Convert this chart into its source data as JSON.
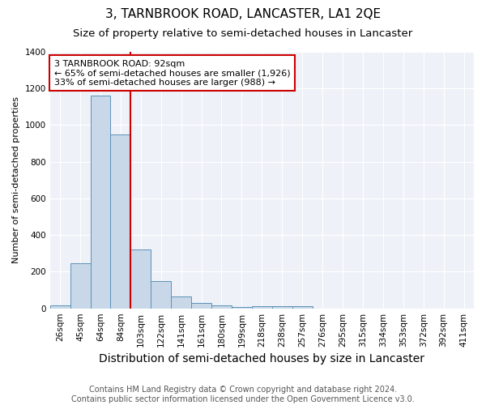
{
  "title": "3, TARNBROOK ROAD, LANCASTER, LA1 2QE",
  "subtitle": "Size of property relative to semi-detached houses in Lancaster",
  "xlabel": "Distribution of semi-detached houses by size in Lancaster",
  "ylabel": "Number of semi-detached properties",
  "categories": [
    "26sqm",
    "45sqm",
    "64sqm",
    "84sqm",
    "103sqm",
    "122sqm",
    "141sqm",
    "161sqm",
    "180sqm",
    "199sqm",
    "218sqm",
    "238sqm",
    "257sqm",
    "276sqm",
    "295sqm",
    "315sqm",
    "334sqm",
    "353sqm",
    "372sqm",
    "392sqm",
    "411sqm"
  ],
  "values": [
    15,
    248,
    1160,
    950,
    320,
    148,
    65,
    28,
    15,
    8,
    12,
    12,
    10,
    0,
    0,
    0,
    0,
    0,
    0,
    0,
    0
  ],
  "bar_color": "#c8d8e8",
  "bar_edge_color": "#5b92b8",
  "marker_line_color": "#cc0000",
  "annotation_line0": "3 TARNBROOK ROAD: 92sqm",
  "annotation_line1": "← 65% of semi-detached houses are smaller (1,926)",
  "annotation_line2": "33% of semi-detached houses are larger (988) →",
  "annotation_box_color": "#ffffff",
  "annotation_box_edge": "#cc0000",
  "footer": "Contains HM Land Registry data © Crown copyright and database right 2024.\nContains public sector information licensed under the Open Government Licence v3.0.",
  "ylim": [
    0,
    1400
  ],
  "title_fontsize": 11,
  "subtitle_fontsize": 9.5,
  "xlabel_fontsize": 10,
  "ylabel_fontsize": 8,
  "tick_fontsize": 7.5,
  "annotation_fontsize": 8,
  "footer_fontsize": 7,
  "background_color": "#eef2f8"
}
